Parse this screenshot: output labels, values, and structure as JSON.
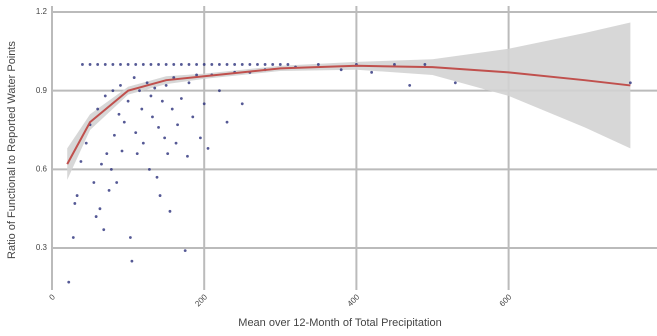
{
  "chart_data": {
    "type": "scatter",
    "x_label": "Mean over 12-Month of Total Precipitation",
    "y_label": "Ratio of Functional to Reported Water Points",
    "xlim": [
      0,
      795
    ],
    "ylim": [
      0.14,
      1.2
    ],
    "xticks": [
      0,
      200,
      400,
      600
    ],
    "yticks": [
      0.3,
      0.6,
      0.9,
      1.2
    ],
    "grid": true,
    "points": {
      "color": "#2b2f7a",
      "x": [
        22,
        28,
        30,
        33,
        38,
        45,
        50,
        55,
        58,
        60,
        63,
        65,
        68,
        70,
        72,
        75,
        78,
        80,
        82,
        85,
        88,
        90,
        92,
        95,
        100,
        103,
        105,
        108,
        110,
        112,
        115,
        118,
        120,
        125,
        128,
        130,
        132,
        135,
        138,
        140,
        142,
        145,
        148,
        150,
        152,
        155,
        158,
        160,
        163,
        165,
        170,
        175,
        178,
        180,
        185,
        190,
        195,
        200,
        205,
        210,
        220,
        230,
        240,
        250,
        260,
        280,
        320,
        380,
        420,
        470,
        530,
        760,
        40,
        50,
        60,
        70,
        80,
        90,
        100,
        110,
        120,
        130,
        140,
        150,
        160,
        170,
        180,
        190,
        200,
        210,
        220,
        230,
        240,
        250,
        260,
        270,
        280,
        290,
        300,
        310,
        350,
        400,
        450,
        490
      ],
      "y": [
        0.17,
        0.34,
        0.47,
        0.5,
        0.63,
        0.7,
        0.77,
        0.55,
        0.42,
        0.83,
        0.45,
        0.62,
        0.37,
        0.88,
        0.66,
        0.52,
        0.6,
        0.9,
        0.73,
        0.55,
        0.81,
        0.92,
        0.67,
        0.78,
        0.86,
        0.34,
        0.25,
        0.95,
        0.74,
        0.66,
        0.9,
        0.83,
        0.7,
        0.93,
        0.6,
        0.88,
        0.8,
        0.91,
        0.57,
        0.76,
        0.5,
        0.86,
        0.72,
        0.92,
        0.66,
        0.44,
        0.83,
        0.95,
        0.7,
        0.77,
        0.87,
        0.29,
        0.65,
        0.93,
        0.8,
        0.96,
        0.72,
        0.85,
        0.68,
        0.96,
        0.9,
        0.78,
        0.97,
        0.85,
        0.97,
        0.98,
        0.99,
        0.98,
        0.97,
        0.92,
        0.93,
        0.93,
        1,
        1,
        1,
        1,
        1,
        1,
        1,
        1,
        1,
        1,
        1,
        1,
        1,
        1,
        1,
        1,
        1,
        1,
        1,
        1,
        1,
        1,
        1,
        1,
        1,
        1,
        1,
        1,
        1,
        1,
        1,
        1
      ]
    },
    "fit": {
      "color": "#c0504d",
      "band_color": "#d3d3d3",
      "x": [
        20,
        50,
        100,
        150,
        200,
        300,
        400,
        500,
        600,
        700,
        760
      ],
      "y": [
        0.62,
        0.78,
        0.9,
        0.94,
        0.955,
        0.985,
        0.995,
        0.99,
        0.97,
        0.94,
        0.92
      ],
      "lower": [
        0.56,
        0.75,
        0.885,
        0.925,
        0.945,
        0.975,
        0.98,
        0.96,
        0.88,
        0.76,
        0.68
      ],
      "upper": [
        0.68,
        0.81,
        0.915,
        0.955,
        0.965,
        0.995,
        1.01,
        1.02,
        1.06,
        1.12,
        1.16
      ]
    }
  }
}
